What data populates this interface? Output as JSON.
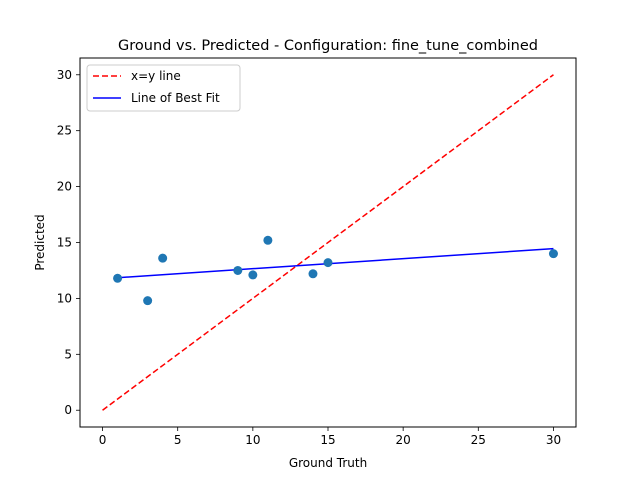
{
  "chart_data": {
    "type": "scatter",
    "title": "Ground vs. Predicted - Configuration: fine_tune_combined",
    "xlabel": "Ground Truth",
    "ylabel": "Predicted",
    "xlim": [
      -1.5,
      31.5
    ],
    "ylim": [
      -1.5,
      31.5
    ],
    "xticks": [
      0,
      5,
      10,
      15,
      20,
      25,
      30
    ],
    "yticks": [
      0,
      5,
      10,
      15,
      20,
      25,
      30
    ],
    "grid": false,
    "legend_position": "top-left",
    "points": {
      "color": "#1f77b4",
      "x": [
        1,
        3,
        4,
        9,
        10,
        11,
        14,
        15,
        30
      ],
      "y": [
        11.8,
        9.8,
        13.6,
        12.5,
        12.1,
        15.2,
        12.2,
        13.2,
        14.0
      ]
    },
    "series": [
      {
        "name": "x=y line",
        "style": "dashed",
        "color": "#ff0000",
        "x": [
          0,
          30
        ],
        "y": [
          0,
          30
        ]
      },
      {
        "name": "Line of Best Fit",
        "style": "solid",
        "color": "#0000ff",
        "x": [
          1,
          30
        ],
        "y": [
          11.85,
          14.45
        ]
      }
    ]
  }
}
